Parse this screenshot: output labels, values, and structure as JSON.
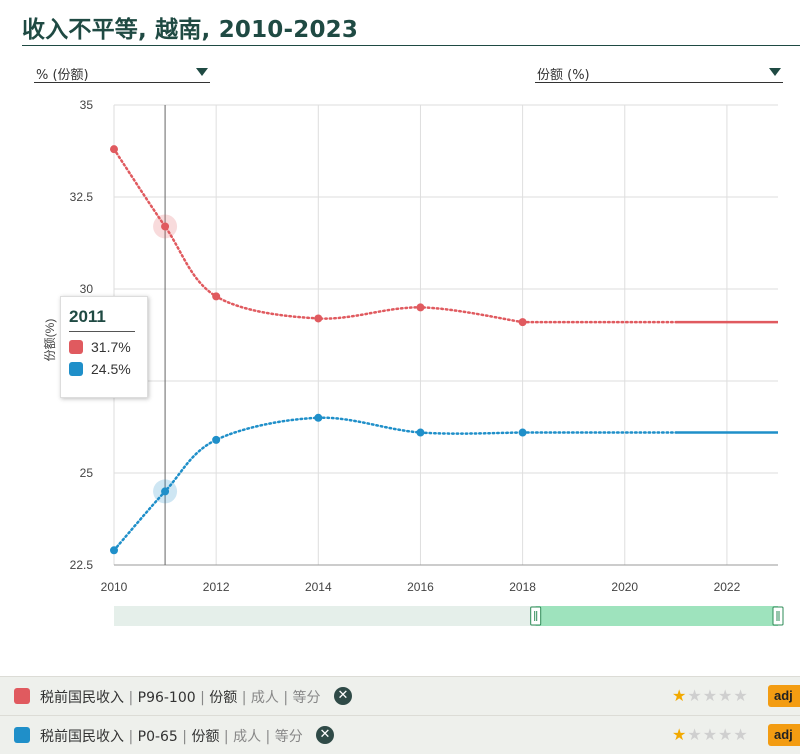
{
  "header": {
    "title": "收入不平等, 越南, 2010-2023"
  },
  "controls": {
    "left_dropdown": "% (份额)",
    "right_dropdown": "份额 (%)"
  },
  "tooltip": {
    "year": "2011",
    "rows": [
      {
        "color": "#e05a5f",
        "text": "31.7%"
      },
      {
        "color": "#1f8fc9",
        "text": "24.5%"
      }
    ]
  },
  "legend": [
    {
      "color": "#e05a5f",
      "parts": [
        "税前国民收入",
        "P96-100",
        "份额",
        "成人",
        "等分"
      ],
      "rating": 1,
      "rating_max": 5,
      "button": "adj"
    },
    {
      "color": "#1f8fc9",
      "parts": [
        "税前国民收入",
        "P0-65",
        "份额",
        "成人",
        "等分"
      ],
      "rating": 1,
      "rating_max": 5,
      "button": "adj"
    }
  ],
  "chart_data": {
    "type": "line",
    "title": "收入不平等, 越南, 2010-2023",
    "ylabel": "份额(%)",
    "xlabel": "",
    "xlim": [
      2010,
      2023
    ],
    "ylim": [
      22.5,
      35
    ],
    "x_ticks": [
      2010,
      2012,
      2014,
      2016,
      2018,
      2020,
      2022
    ],
    "y_ticks": [
      22.5,
      25,
      27.5,
      30,
      32.5,
      35
    ],
    "grid": true,
    "highlight_x": 2011,
    "series": [
      {
        "name": "税前国民收入 | P96-100 | 份额 | 成人 | 等分",
        "color": "#e05a5f",
        "x": [
          2010,
          2011,
          2012,
          2014,
          2016,
          2018
        ],
        "y": [
          33.8,
          31.7,
          29.8,
          29.2,
          29.5,
          29.1
        ],
        "projection": {
          "x": [
            2018,
            2021,
            2023
          ],
          "y": [
            29.1,
            29.1,
            29.1
          ]
        }
      },
      {
        "name": "税前国民收入 | P0-65 | 份额 | 成人 | 等分",
        "color": "#1f8fc9",
        "x": [
          2010,
          2011,
          2012,
          2014,
          2016,
          2018
        ],
        "y": [
          22.9,
          24.5,
          25.9,
          26.5,
          26.1,
          26.1
        ],
        "projection": {
          "x": [
            2018,
            2021,
            2023
          ],
          "y": [
            26.1,
            26.1,
            26.1
          ]
        }
      }
    ],
    "range_selector": {
      "from": 2019,
      "to": 2023
    }
  }
}
